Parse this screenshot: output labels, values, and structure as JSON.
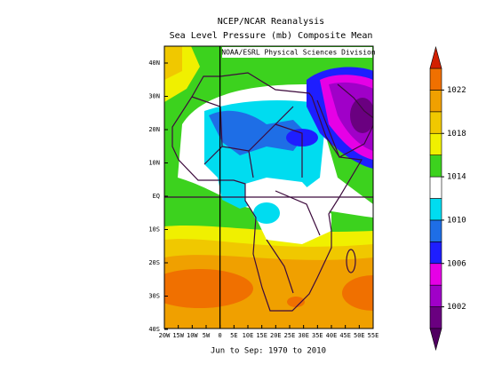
{
  "header": {
    "title": "NCEP/NCAR Reanalysis",
    "subtitle": "Sea Level Pressure (mb) Composite Mean"
  },
  "map": {
    "credit": "NOAA/ESRL Physical Sciences Division",
    "lat_labels": [
      "40N",
      "30N",
      "20N",
      "10N",
      "EQ",
      "10S",
      "20S",
      "30S",
      "40S"
    ],
    "lon_labels": [
      "20W",
      "15W",
      "10W",
      "5W",
      "0",
      "5E",
      "10E",
      "15E",
      "20E",
      "25E",
      "30E",
      "35E",
      "40E",
      "45E",
      "50E",
      "55E"
    ],
    "footer": "Jun to Sep: 1970 to 2010"
  },
  "colorbar": {
    "levels": [
      1000,
      1002,
      1004,
      1006,
      1008,
      1010,
      1012,
      1014,
      1016,
      1018,
      1020,
      1022,
      1024
    ],
    "colors": [
      "#6a0080",
      "#a000c8",
      "#e600e6",
      "#1e1eff",
      "#1e6ee6",
      "#00dcf0",
      "#ffffff",
      "#3cd21e",
      "#f0f000",
      "#f0c800",
      "#f0a000",
      "#f07000"
    ],
    "over_color": "#d22000",
    "under_color": "#500060",
    "labels": [
      1002,
      1006,
      1010,
      1014,
      1018,
      1022
    ]
  }
}
